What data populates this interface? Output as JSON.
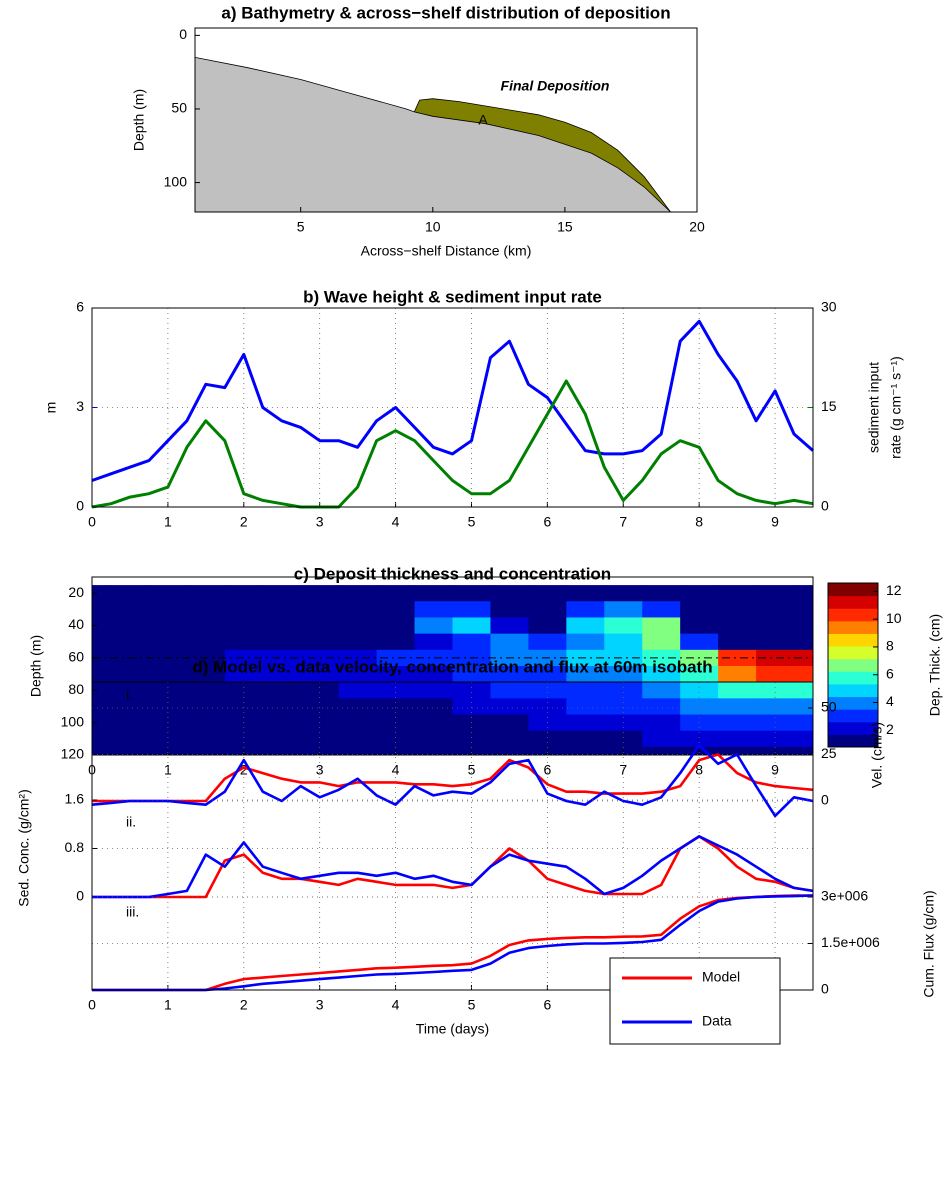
{
  "chart_data": [
    {
      "type": "area",
      "title": "a) Bathymetry & across−shelf distribution of deposition",
      "xlabel": "Across−shelf Distance (km)",
      "ylabel": "Depth (m)",
      "xlim": [
        1,
        20
      ],
      "xticks": [
        5,
        10,
        15,
        20
      ],
      "ylim": [
        -5,
        120
      ],
      "yticks": [
        0,
        50,
        100
      ],
      "inverted_y": true,
      "bathymetry": {
        "color": "#c0c0c0",
        "x": [
          1,
          3,
          5,
          7,
          9,
          9.3,
          10,
          12,
          14,
          16,
          17,
          18,
          19
        ],
        "values": [
          15,
          22,
          30,
          40,
          50,
          52,
          55,
          60,
          68,
          80,
          90,
          103,
          120
        ]
      },
      "deposition": {
        "color": "#808000",
        "x": [
          9.3,
          9.5,
          10,
          11,
          12,
          13,
          14,
          15,
          16,
          17,
          18,
          19
        ],
        "values": [
          52,
          44,
          43,
          45,
          48,
          51,
          54,
          59,
          66,
          78,
          96,
          120
        ]
      },
      "annotations": [
        "Final Deposition",
        "A"
      ]
    },
    {
      "type": "line",
      "title": "b) Wave height & sediment input rate",
      "grid": true,
      "ylabel": "m",
      "y2label": [
        "sediment input",
        "rate (g cm⁻¹ s⁻¹)"
      ],
      "x": [
        0,
        0.25,
        0.5,
        0.75,
        1,
        1.25,
        1.5,
        1.75,
        2,
        2.25,
        2.5,
        2.75,
        3,
        3.25,
        3.5,
        3.75,
        4,
        4.25,
        4.5,
        4.75,
        5,
        5.25,
        5.5,
        5.75,
        6,
        6.25,
        6.5,
        6.75,
        7,
        7.25,
        7.5,
        7.75,
        8,
        8.25,
        8.5,
        8.75,
        9,
        9.25,
        9.5
      ],
      "xlim": [
        0,
        9.5
      ],
      "xticks": [
        0,
        1,
        2,
        3,
        4,
        5,
        6,
        7,
        8,
        9
      ],
      "ylim": [
        0,
        6
      ],
      "yticks": [
        0,
        3,
        6
      ],
      "y2lim": [
        0,
        30
      ],
      "y2ticks": [
        0,
        15,
        30
      ],
      "series": [
        {
          "color": "#0000ff",
          "values": [
            0.8,
            1.0,
            1.2,
            1.4,
            2.0,
            2.6,
            3.7,
            3.6,
            4.6,
            3.0,
            2.6,
            2.4,
            2.0,
            2.0,
            1.8,
            2.6,
            3.0,
            2.4,
            1.8,
            1.6,
            2.0,
            4.5,
            5.0,
            3.7,
            3.3,
            2.5,
            1.7,
            1.6,
            1.6,
            1.7,
            2.2,
            5.0,
            5.6,
            4.6,
            3.8,
            2.6,
            3.5,
            2.2,
            1.7
          ]
        },
        {
          "color": "#008000",
          "axis": "y2",
          "values": [
            0,
            0.5,
            1.5,
            2,
            3,
            9,
            13,
            10,
            2,
            1,
            0.5,
            0,
            0,
            0,
            3,
            10,
            11.5,
            10,
            7,
            4,
            2,
            2,
            4,
            9,
            14,
            19,
            14,
            6,
            1,
            4,
            8,
            10,
            9,
            4,
            2,
            1,
            0.5,
            1,
            0.5
          ]
        }
      ]
    },
    {
      "type": "heatmap",
      "title": "c) Deposit thickness and concentration",
      "ylabel": "Depth (m)",
      "colormap": "jet",
      "x": [
        0,
        0.5,
        1,
        1.5,
        2,
        2.5,
        3,
        3.5,
        4,
        4.5,
        5,
        5.5,
        6,
        6.5,
        7,
        7.5,
        8,
        8.5,
        9,
        9.5
      ],
      "y": [
        20,
        30,
        40,
        50,
        60,
        70,
        80,
        90,
        100,
        110,
        120
      ],
      "xlim": [
        0,
        9.5
      ],
      "xticks": [
        0,
        1,
        2,
        3,
        4,
        5,
        6,
        7,
        8,
        9
      ],
      "ylim": [
        10,
        120
      ],
      "yticks": [
        20,
        40,
        60,
        80,
        100,
        120
      ],
      "inverted_y": true,
      "ref_line": 60,
      "values": [
        [
          0.5,
          0.5,
          0.5,
          0.5,
          0.5,
          0.5,
          0.5,
          0.5,
          0.5,
          0.5,
          0.5,
          0.5,
          0.5,
          0.5,
          0.5,
          0.5,
          0.5,
          0.5,
          0.5,
          0.5
        ],
        [
          0.5,
          0.5,
          0.5,
          0.5,
          0.5,
          0.5,
          0.5,
          0.5,
          0.5,
          3,
          3,
          0.5,
          0.5,
          3,
          4,
          3,
          0.5,
          0.5,
          0.5,
          0.5
        ],
        [
          0.5,
          0.5,
          0.5,
          0.5,
          0.5,
          0.5,
          0.5,
          0.5,
          1.5,
          4,
          4.5,
          2,
          1,
          5,
          6,
          7,
          1,
          0.5,
          0.5,
          0.5
        ],
        [
          0.5,
          0.5,
          0.5,
          0.5,
          0.5,
          0.5,
          0.5,
          0.5,
          0.5,
          2,
          3,
          4,
          3,
          4,
          5,
          7,
          3,
          0.5,
          0.5,
          0.5
        ],
        [
          0.5,
          0.5,
          0.5,
          1.5,
          2,
          2,
          2,
          2.5,
          3,
          3,
          3.5,
          4,
          4,
          4.5,
          5,
          5.5,
          7,
          10,
          11,
          11
        ],
        [
          0.5,
          0.5,
          0.5,
          1.5,
          2,
          2,
          2,
          2,
          2.5,
          2.5,
          3,
          3.5,
          3.5,
          4,
          4,
          4.5,
          6,
          9,
          10,
          10
        ],
        [
          0.5,
          0.5,
          0.5,
          1,
          1.5,
          1.5,
          1.5,
          2,
          2,
          2,
          2.5,
          3,
          3,
          3.5,
          3.5,
          4,
          5,
          6,
          6,
          6
        ],
        [
          0.5,
          0.5,
          0.5,
          1,
          1,
          1,
          1.5,
          1.5,
          1.5,
          1.5,
          2,
          2.5,
          2.5,
          3,
          3,
          3.5,
          4,
          4,
          4,
          4
        ],
        [
          0.5,
          0.5,
          0.5,
          0.5,
          1,
          1,
          1,
          1,
          1,
          1,
          1.5,
          1.5,
          2,
          2,
          2,
          2.5,
          3,
          3,
          3,
          3
        ],
        [
          0.5,
          0.5,
          0.5,
          0.5,
          0.5,
          0.5,
          0.5,
          0.5,
          0.5,
          1,
          1,
          1,
          1.5,
          1.5,
          1.5,
          2,
          2,
          2,
          2,
          2
        ],
        [
          0.5,
          0.5,
          0.5,
          0.5,
          0.5,
          0.5,
          0.5,
          0.5,
          0.5,
          0.5,
          0.5,
          0.5,
          0.5,
          0.5,
          0.5,
          0.5,
          0.5,
          0.5,
          1,
          1
        ]
      ],
      "colorbar": {
        "label": "Dep. Thick. (cm)",
        "clim": [
          0.8,
          12.6
        ],
        "ticks": [
          2,
          4,
          6,
          8,
          10,
          12
        ]
      }
    },
    {
      "type": "line",
      "title": "d) Model vs. data velocity, concentration and flux at 60m isobath",
      "grid": true,
      "xlabel": "Time (days)",
      "legend": "lower right",
      "x": [
        0,
        0.25,
        0.5,
        0.75,
        1,
        1.25,
        1.5,
        1.75,
        2,
        2.25,
        2.5,
        2.75,
        3,
        3.25,
        3.5,
        3.75,
        4,
        4.25,
        4.5,
        4.75,
        5,
        5.25,
        5.5,
        5.75,
        6,
        6.25,
        6.5,
        6.75,
        7,
        7.25,
        7.5,
        7.75,
        8,
        8.25,
        8.5,
        8.75,
        9,
        9.25,
        9.5
      ],
      "xlim": [
        0,
        9.5
      ],
      "xticks": [
        0,
        1,
        2,
        3,
        4,
        5,
        6,
        7,
        8,
        9
      ],
      "series": [
        {
          "name": "Model",
          "color": "#ff0000"
        },
        {
          "name": "Data",
          "color": "#0000ff"
        }
      ],
      "subplots": [
        {
          "label": "i.",
          "ylabel": "Vel. (cm/s)",
          "ylim": [
            0,
            50
          ],
          "yticks": [
            0,
            25,
            50
          ],
          "values": [
            [
              0,
              0,
              0,
              0,
              0,
              0,
              0,
              12,
              18,
              15,
              12,
              10,
              10,
              8,
              10,
              10,
              10,
              9,
              9,
              8,
              9,
              12,
              22,
              18,
              9,
              5,
              5,
              4,
              4,
              4,
              5,
              8,
              22,
              25,
              15,
              10,
              8,
              7,
              6
            ],
            [
              -2,
              -1,
              0,
              0,
              0,
              -1,
              -2,
              5,
              22,
              5,
              0,
              8,
              2,
              6,
              12,
              3,
              -2,
              8,
              3,
              5,
              4,
              10,
              20,
              22,
              4,
              0,
              -2,
              5,
              0,
              -2,
              2,
              15,
              30,
              20,
              25,
              8,
              -8,
              2,
              0
            ]
          ]
        },
        {
          "label": "ii.",
          "ylabel": "Sed. Conc. (g/cm²)",
          "ylim": [
            0,
            1.6
          ],
          "yticks": [
            0,
            0.8,
            1.6
          ],
          "values": [
            [
              0,
              0,
              0,
              0,
              0,
              0,
              0,
              0.6,
              0.7,
              0.4,
              0.3,
              0.3,
              0.25,
              0.2,
              0.3,
              0.25,
              0.2,
              0.2,
              0.2,
              0.15,
              0.2,
              0.5,
              0.8,
              0.6,
              0.3,
              0.2,
              0.1,
              0.05,
              0.05,
              0.05,
              0.2,
              0.8,
              1.0,
              0.8,
              0.5,
              0.3,
              0.25,
              0.15,
              0.1
            ],
            [
              0,
              0,
              0,
              0,
              0.05,
              0.1,
              0.7,
              0.5,
              0.9,
              0.5,
              0.4,
              0.3,
              0.35,
              0.4,
              0.4,
              0.35,
              0.4,
              0.3,
              0.35,
              0.25,
              0.2,
              0.5,
              0.7,
              0.6,
              0.55,
              0.5,
              0.3,
              0.05,
              0.15,
              0.35,
              0.6,
              0.8,
              1.0,
              0.85,
              0.7,
              0.5,
              0.3,
              0.15,
              0.1
            ]
          ]
        },
        {
          "label": "iii.",
          "ylabel": "Cum. Flux (g/cm)",
          "ylim": [
            0,
            3000000
          ],
          "yticks": [
            0,
            {
              "value": 1500000,
              "label": "1.5e+006"
            },
            {
              "value": 3000000,
              "label": "3e+006"
            }
          ],
          "values": [
            [
              0,
              0,
              0,
              0,
              0,
              0,
              0,
              200000,
              350000,
              400000,
              450000,
              500000,
              550000,
              600000,
              650000,
              700000,
              720000,
              750000,
              780000,
              800000,
              850000,
              1100000,
              1450000,
              1600000,
              1650000,
              1680000,
              1700000,
              1700000,
              1720000,
              1730000,
              1780000,
              2300000,
              2700000,
              2900000,
              2970000,
              3000000,
              3030000,
              3050000,
              3050000
            ],
            [
              0,
              0,
              0,
              0,
              0,
              0,
              0,
              50000,
              120000,
              200000,
              250000,
              300000,
              350000,
              400000,
              450000,
              500000,
              520000,
              550000,
              580000,
              620000,
              650000,
              850000,
              1200000,
              1350000,
              1420000,
              1470000,
              1500000,
              1500000,
              1520000,
              1550000,
              1620000,
              2100000,
              2550000,
              2850000,
              2950000,
              3000000,
              3020000,
              3030000,
              3050000
            ]
          ]
        }
      ]
    }
  ]
}
